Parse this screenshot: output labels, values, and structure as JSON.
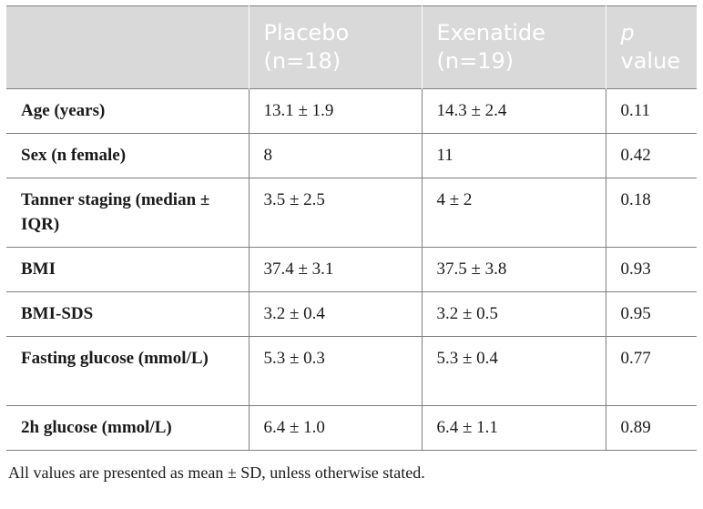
{
  "table": {
    "headers": [
      {
        "line1": "",
        "line2": ""
      },
      {
        "line1": "Placebo",
        "line2": "(n=18)"
      },
      {
        "line1": "Exenatide",
        "line2": "(n=19)"
      },
      {
        "line1": "p",
        "line2": "value"
      }
    ],
    "rows": [
      {
        "label": "Age (years)",
        "placebo": "13.1 ± 1.9",
        "exenatide": "14.3 ± 2.4",
        "p": "0.11"
      },
      {
        "label": "Sex (n female)",
        "placebo": "8",
        "exenatide": "11",
        "p": "0.42"
      },
      {
        "label": "Tanner staging (median ± IQR)",
        "placebo": "3.5 ± 2.5",
        "exenatide": "4 ± 2",
        "p": "0.18"
      },
      {
        "label": "BMI",
        "placebo": "37.4 ± 3.1",
        "exenatide": "37.5 ± 3.8",
        "p": "0.93"
      },
      {
        "label": "BMI-SDS",
        "placebo": "3.2 ± 0.4",
        "exenatide": "3.2 ± 0.5",
        "p": "0.95"
      },
      {
        "label": "Fasting glucose (mmol/L)",
        "placebo": "5.3 ± 0.3",
        "exenatide": "5.3 ± 0.4",
        "p": "0.77"
      },
      {
        "label": "2h glucose (mmol/L)",
        "placebo": "6.4 ± 1.0",
        "exenatide": "6.4 ± 1.1",
        "p": "0.89"
      }
    ]
  },
  "footnote": "All values are presented as mean ± SD, unless otherwise stated.",
  "colors": {
    "header_bg": "#d9d9d9",
    "header_text": "#ffffff",
    "border": "#7f7f7f",
    "body_text": "#1a1a1a"
  }
}
